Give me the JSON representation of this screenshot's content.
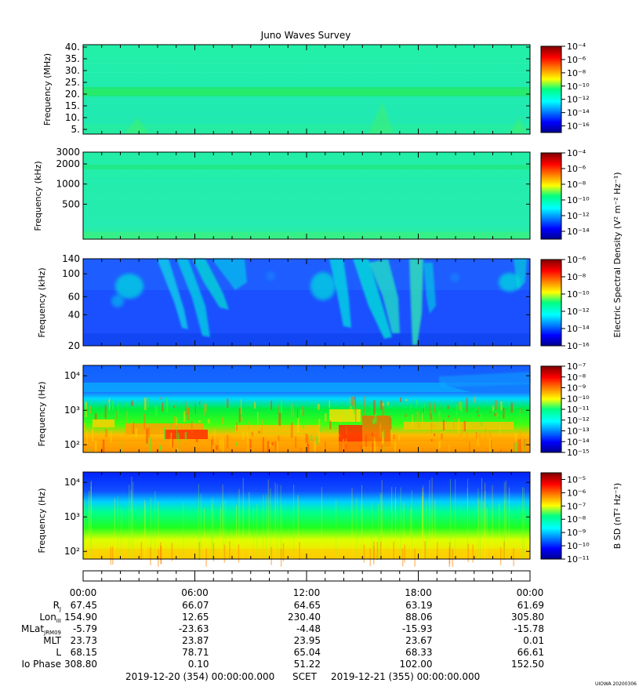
{
  "title": "Juno Waves Survey",
  "credit": "UIOWA 20200306",
  "chart_data": [
    {
      "type": "heatmap",
      "name": "panel-hfwbr",
      "ylabel": "Frequency (MHz)",
      "ylim": [
        3,
        41
      ],
      "yscale": "linear",
      "yticks": [
        5,
        10,
        15,
        20,
        25,
        30,
        35,
        40
      ],
      "ytick_labels": [
        "5.",
        "10.",
        "15.",
        "20.",
        "25.",
        "30.",
        "35.",
        "40."
      ],
      "colorbar": {
        "scale": "log",
        "range_exp": [
          -17,
          -4
        ],
        "tick_exp": [
          -4,
          -6,
          -8,
          -10,
          -12,
          -14,
          -16
        ],
        "label": ""
      },
      "bands": [
        {
          "value": 21.3,
          "note": "band"
        }
      ]
    },
    {
      "type": "heatmap",
      "name": "panel-hfr",
      "ylabel": "Frequency (kHz)",
      "ylim": [
        150,
        3000
      ],
      "yscale": "log",
      "yticks": [
        500,
        1000,
        2000,
        3000
      ],
      "ytick_labels": [
        "500",
        "1000",
        "2000",
        "3000"
      ],
      "colorbar": {
        "scale": "log",
        "range_exp": [
          -15,
          -4
        ],
        "tick_exp": [
          -4,
          -6,
          -8,
          -10,
          -12,
          -14
        ],
        "label": "Electric Spectral Density (V² m⁻² Hz⁻¹)"
      },
      "bands": [
        {
          "value": 1800
        }
      ]
    },
    {
      "type": "heatmap",
      "name": "panel-lfrh",
      "ylabel": "Frequency (kHz)",
      "ylim": [
        20,
        140
      ],
      "yscale": "log",
      "yticks": [
        20,
        40,
        60,
        100,
        140
      ],
      "ytick_labels": [
        "20",
        "40",
        "60",
        "100",
        "140"
      ],
      "colorbar": {
        "scale": "log",
        "range_exp": [
          -16,
          -6
        ],
        "tick_exp": [
          -6,
          -8,
          -10,
          -12,
          -14,
          -16
        ],
        "label": ""
      }
    },
    {
      "type": "heatmap",
      "name": "panel-lfrl-e",
      "ylabel": "Frequency (Hz)",
      "ylim": [
        60,
        20000
      ],
      "yscale": "log",
      "yticks": [
        100,
        1000,
        10000
      ],
      "ytick_labels": [
        "10²",
        "10³",
        "10⁴"
      ],
      "colorbar": {
        "scale": "log",
        "range_exp": [
          -15,
          -7
        ],
        "tick_exp": [
          -7,
          -8,
          -9,
          -10,
          -11,
          -12,
          -13,
          -14,
          -15
        ],
        "label": ""
      }
    },
    {
      "type": "heatmap",
      "name": "panel-lfrl-b",
      "ylabel": "Frequency (Hz)",
      "ylim": [
        60,
        20000
      ],
      "yscale": "log",
      "yticks": [
        100,
        1000,
        10000
      ],
      "ytick_labels": [
        "10²",
        "10³",
        "10⁴"
      ],
      "colorbar": {
        "scale": "log",
        "range_exp": [
          -11,
          -4.5
        ],
        "tick_exp": [
          -5,
          -6,
          -7,
          -8,
          -9,
          -10,
          -11
        ],
        "label": "B SD (nT² Hz⁻¹)"
      }
    }
  ],
  "time_axis": {
    "ticks": [
      "00:00",
      "06:00",
      "12:00",
      "18:00",
      "00:00"
    ],
    "rows": [
      {
        "name": "R",
        "sub": "J",
        "values": [
          "67.45",
          "66.07",
          "64.65",
          "63.19",
          "61.69"
        ]
      },
      {
        "name": "Lon",
        "sub": "III",
        "values": [
          "154.90",
          "12.65",
          "230.40",
          "88.06",
          "305.80"
        ]
      },
      {
        "name": "MLat",
        "sub": "JRM09",
        "values": [
          "-5.79",
          "-23.63",
          "-4.48",
          "-15.93",
          "-15.78"
        ]
      },
      {
        "name": "MLT",
        "sub": "",
        "values": [
          "23.73",
          "23.87",
          "23.95",
          "23.67",
          "0.01"
        ]
      },
      {
        "name": "L",
        "sub": "",
        "values": [
          "68.15",
          "78.71",
          "65.04",
          "68.33",
          "66.61"
        ]
      },
      {
        "name": "Io Phase",
        "sub": "",
        "values": [
          "308.80",
          "0.10",
          "51.22",
          "102.00",
          "152.50"
        ]
      }
    ],
    "range_start": "2019-12-20 (354) 00:00:00.000",
    "range_label": "SCET",
    "range_end": "2019-12-21 (355) 00:00:00.000"
  }
}
